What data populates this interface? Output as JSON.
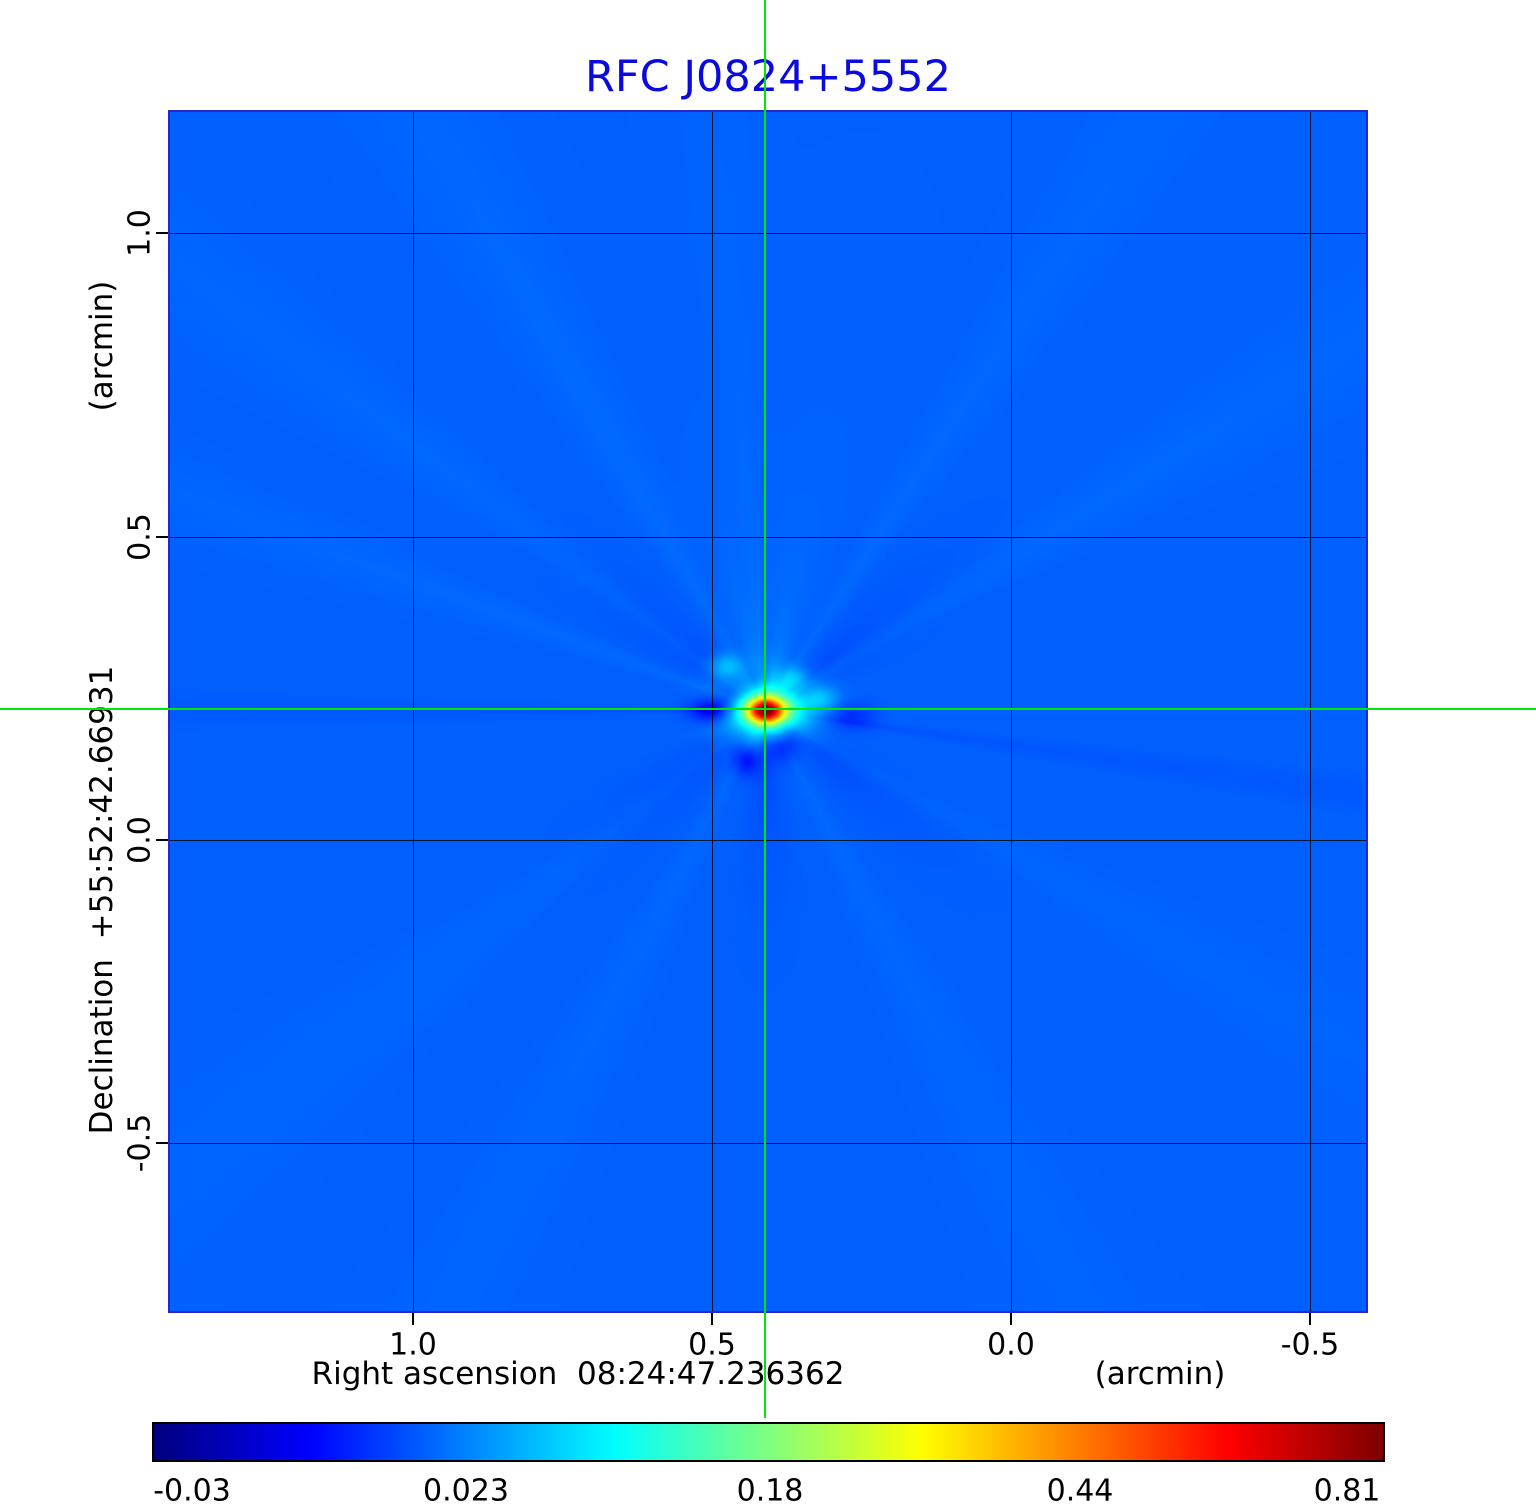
{
  "title": "RFC J0824+5552",
  "title_color": "#0a0ae0",
  "axes": {
    "y_unit": "(arcmin)",
    "y_label": "Declination  +55:52:42.66931",
    "y_ticks": [
      "1.0",
      "0.5",
      "0.0",
      "-0.5"
    ],
    "x_label": "Right ascension  08:24:47.236362",
    "x_unit": "(arcmin)",
    "x_ticks": [
      "1.0",
      "0.5",
      "0.0",
      "-0.5"
    ]
  },
  "colorbar": {
    "tick_labels": [
      "-0.03",
      "0.023",
      "0.18",
      "0.44",
      "0.81"
    ]
  },
  "crosshair_color": "#00e60a",
  "chart_data": {
    "type": "heatmap",
    "title": "RFC J0824+5552",
    "xlabel": "Right ascension 08:24:47.236362 (arcmin)",
    "ylabel": "Declination +55:52:42.66931 (arcmin)",
    "x_range_arcmin": [
      1.41,
      -0.6
    ],
    "y_range_arcmin": [
      -0.78,
      1.2
    ],
    "x_ticks": [
      1.0,
      0.5,
      0.0,
      -0.5
    ],
    "y_ticks": [
      1.0,
      0.5,
      0.0,
      -0.5
    ],
    "grid": true,
    "colormap": "jet",
    "colorbar_ticks": [
      -0.03,
      0.023,
      0.18,
      0.44,
      0.81
    ],
    "intensity_mapping": "value = 0.84*t^2 - 0.03 for normalized colorbar position t in [0,1]",
    "value_min": -0.03,
    "value_max": 0.81,
    "background_level": 0.0105,
    "peak": {
      "x_arcmin": 0.41,
      "y_arcmin": 0.21,
      "value": 0.81
    },
    "crosshair_arcmin": {
      "x": 0.41,
      "y": 0.21
    },
    "description": "Radio interferometric intensity map: uniform blue background, compact bright source (red core, orange-yellow ring, cyan halo) at the crosshair position, surrounded by dark-blue negative sidelobes and faint radial sidelobe spokes."
  }
}
